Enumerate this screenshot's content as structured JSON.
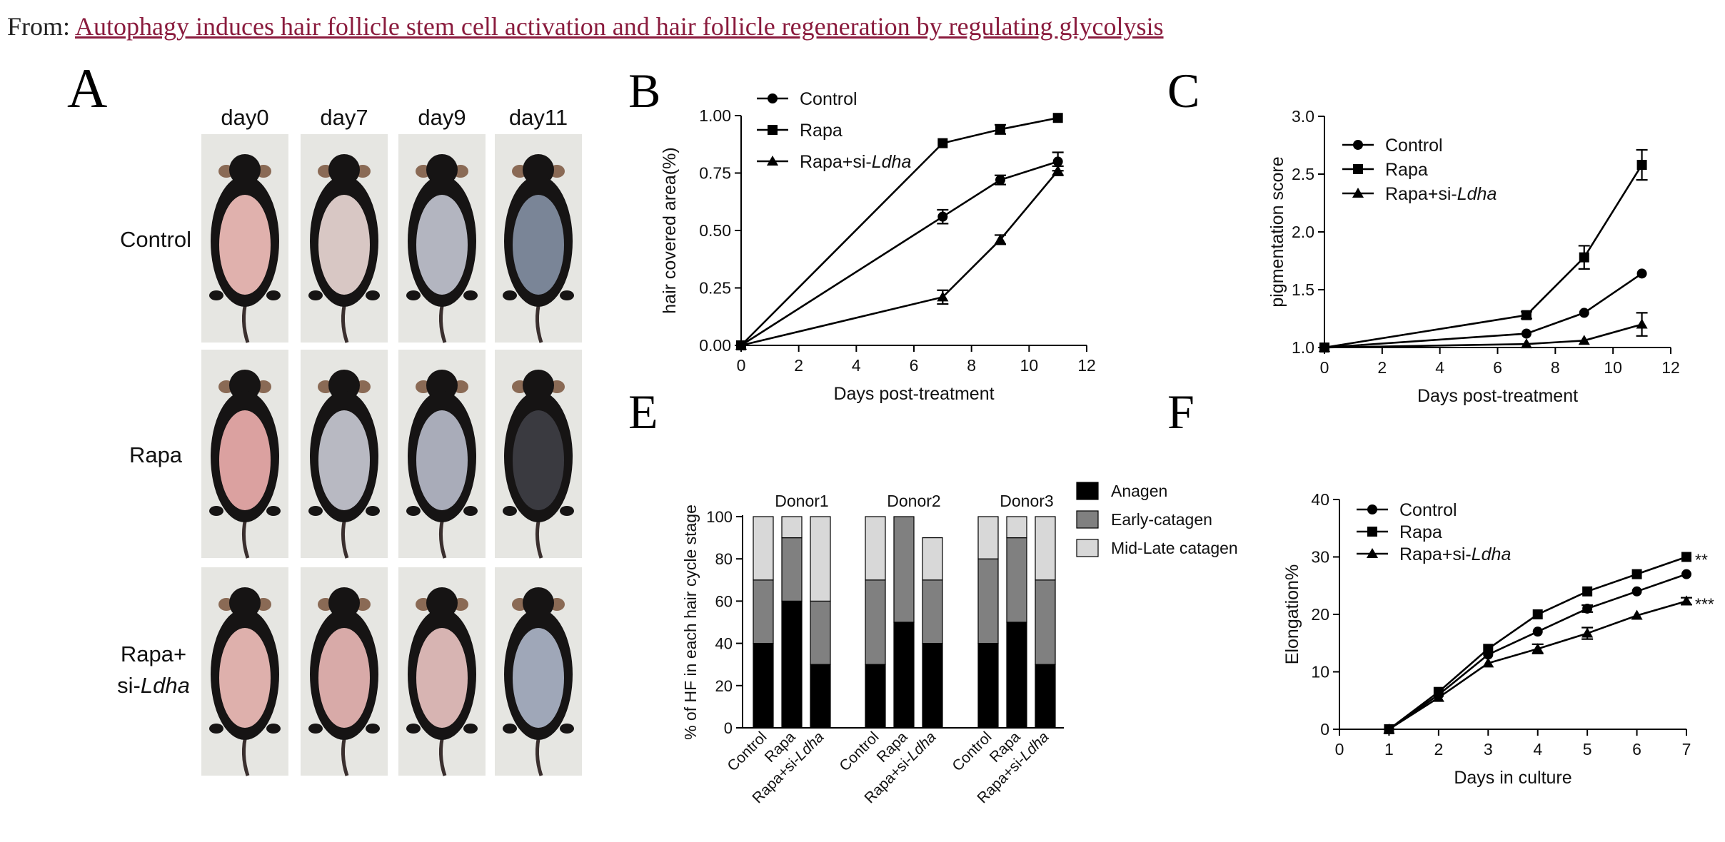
{
  "header": {
    "prefix": "From:",
    "article_title": "Autophagy induces hair follicle stem cell activation and hair follicle regeneration by regulating glycolysis"
  },
  "panels": {
    "A": "A",
    "B": "B",
    "C": "C",
    "E": "E",
    "F": "F"
  },
  "photo_grid": {
    "days": [
      "day0",
      "day7",
      "day9",
      "day11"
    ],
    "rows": [
      {
        "label": "Control",
        "label2": "",
        "label2_italic": ""
      },
      {
        "label": "Rapa",
        "label2": "",
        "label2_italic": ""
      },
      {
        "label": "Rapa+",
        "label2": "si-",
        "label2_italic": "Ldha"
      }
    ],
    "colors": {
      "skin_pink": "#d9a7a5",
      "skin_gray": "#a9aab6",
      "skin_blue": "#8a98ad",
      "fur": "#161414",
      "background": "#e6e6e2"
    },
    "skin_tones": [
      [
        "#e0b1ad",
        "#d8c7c4",
        "#b3b5c0",
        "#7a8597"
      ],
      [
        "#dba1a0",
        "#b8b9c2",
        "#a9acb9",
        "#3a3a40"
      ],
      [
        "#deb0ac",
        "#d8aaa8",
        "#d7b4b2",
        "#9fa7b8"
      ]
    ]
  },
  "chart_data": [
    {
      "id": "B",
      "type": "line",
      "xlabel": "Days post-treatment",
      "ylabel": "hair covered area(%)",
      "xlim": [
        0,
        12
      ],
      "ylim": [
        0,
        1.0
      ],
      "xticks": [
        "0",
        "2",
        "4",
        "6",
        "8",
        "10",
        "12"
      ],
      "yticks": [
        "0.00",
        "0.25",
        "0.50",
        "0.75",
        "1.00"
      ],
      "legend_position": "top-left",
      "series": [
        {
          "name": "Control",
          "name_italic": "",
          "marker": "circle",
          "x": [
            0,
            7,
            9,
            11
          ],
          "y": [
            0,
            0.56,
            0.72,
            0.8
          ],
          "err": [
            0,
            0.03,
            0.02,
            0.04
          ]
        },
        {
          "name": "Rapa",
          "name_italic": "",
          "marker": "square",
          "x": [
            0,
            7,
            9,
            11
          ],
          "y": [
            0,
            0.88,
            0.94,
            0.99
          ],
          "err": [
            0,
            0,
            0.02,
            0
          ]
        },
        {
          "name": "Rapa+si-",
          "name_italic": "Ldha",
          "marker": "triangle",
          "x": [
            0,
            7,
            9,
            11
          ],
          "y": [
            0,
            0.21,
            0.46,
            0.76
          ],
          "err": [
            0,
            0.03,
            0.02,
            0.02
          ]
        }
      ]
    },
    {
      "id": "C",
      "type": "line",
      "xlabel": "Days post-treatment",
      "ylabel": "pigmentation score",
      "xlim": [
        0,
        12
      ],
      "ylim": [
        1.0,
        3.0
      ],
      "xticks": [
        "0",
        "2",
        "4",
        "6",
        "8",
        "10",
        "12"
      ],
      "yticks": [
        "1.0",
        "1.5",
        "2.0",
        "2.5",
        "3.0"
      ],
      "legend_position": "top-left",
      "series": [
        {
          "name": "Control",
          "name_italic": "",
          "marker": "circle",
          "x": [
            0,
            7,
            9,
            11
          ],
          "y": [
            1.0,
            1.12,
            1.3,
            1.64
          ],
          "err": [
            0,
            0,
            0,
            0
          ]
        },
        {
          "name": "Rapa",
          "name_italic": "",
          "marker": "square",
          "x": [
            0,
            7,
            9,
            11
          ],
          "y": [
            1.0,
            1.28,
            1.78,
            2.58
          ],
          "err": [
            0,
            0.03,
            0.1,
            0.13
          ]
        },
        {
          "name": "Rapa+si-",
          "name_italic": "Ldha",
          "marker": "triangle",
          "x": [
            0,
            7,
            9,
            11
          ],
          "y": [
            1.0,
            1.03,
            1.06,
            1.2
          ],
          "err": [
            0,
            0,
            0,
            0.1
          ]
        }
      ]
    },
    {
      "id": "E",
      "type": "bar",
      "stacked": true,
      "ylabel": "% of HF in each hair cycle stage",
      "ylim": [
        0,
        100
      ],
      "yticks": [
        "0",
        "20",
        "40",
        "60",
        "80",
        "100"
      ],
      "legend_position": "top-right",
      "groups": [
        "Donor1",
        "Donor2",
        "Donor3"
      ],
      "categories": [
        {
          "text": "Control",
          "italic": ""
        },
        {
          "text": "Rapa",
          "italic": ""
        },
        {
          "text": "Rapa+si-",
          "italic": "Ldha"
        }
      ],
      "series": [
        {
          "name": "Anagen",
          "color": "#000000",
          "values": [
            [
              40,
              60,
              30
            ],
            [
              30,
              50,
              40
            ],
            [
              40,
              50,
              30
            ]
          ]
        },
        {
          "name": "Early-catagen",
          "color": "#808080",
          "values": [
            [
              30,
              30,
              30
            ],
            [
              40,
              50,
              30
            ],
            [
              40,
              40,
              40
            ]
          ]
        },
        {
          "name": "Mid-Late catagen",
          "color": "#d8d8d8",
          "values": [
            [
              30,
              10,
              40
            ],
            [
              30,
              0,
              20
            ],
            [
              20,
              10,
              30
            ]
          ]
        }
      ]
    },
    {
      "id": "F",
      "type": "line",
      "xlabel": "Days in culture",
      "ylabel": "Elongation%",
      "xlim": [
        0,
        7
      ],
      "ylim": [
        0,
        40
      ],
      "xticks": [
        "0",
        "1",
        "2",
        "3",
        "4",
        "5",
        "6",
        "7"
      ],
      "yticks": [
        "0",
        "10",
        "20",
        "30",
        "40"
      ],
      "legend_position": "top-left",
      "series": [
        {
          "name": "Control",
          "name_italic": "",
          "marker": "circle",
          "x": [
            1,
            2,
            3,
            4,
            5,
            6,
            7
          ],
          "y": [
            0,
            6,
            13,
            17,
            21,
            24,
            27
          ],
          "err": [
            0,
            0,
            0,
            0,
            0.6,
            0,
            0
          ],
          "annotation": ""
        },
        {
          "name": "Rapa",
          "name_italic": "",
          "marker": "square",
          "x": [
            1,
            2,
            3,
            4,
            5,
            6,
            7
          ],
          "y": [
            0,
            6.5,
            14,
            20,
            24,
            27,
            30
          ],
          "err": [
            0,
            0,
            0,
            0,
            0,
            0,
            0
          ],
          "annotation": "**"
        },
        {
          "name": "Rapa+si-",
          "name_italic": "Ldha",
          "marker": "triangle",
          "x": [
            1,
            2,
            3,
            4,
            5,
            6,
            7
          ],
          "y": [
            0,
            5.5,
            11.5,
            14,
            16.7,
            19.8,
            22.3
          ],
          "err": [
            0,
            0,
            0,
            0.8,
            1,
            0,
            0.6
          ],
          "annotation": "***"
        }
      ]
    }
  ]
}
